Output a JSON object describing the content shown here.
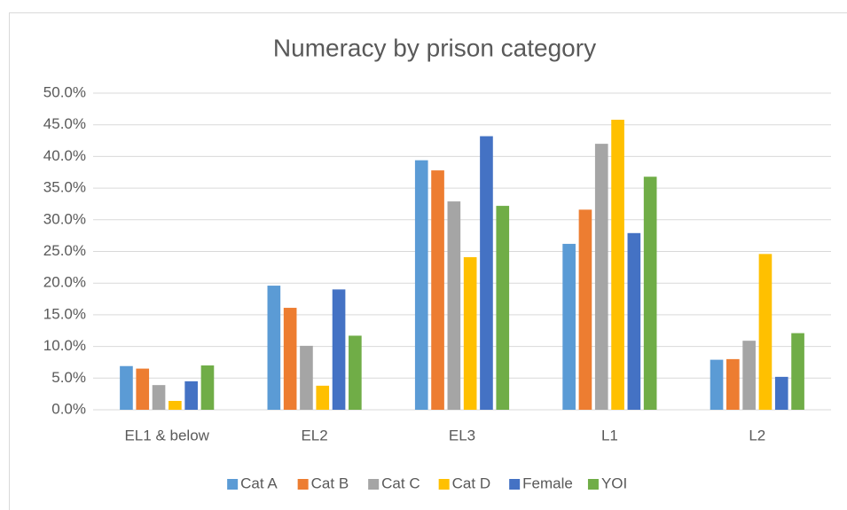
{
  "chart_data": {
    "type": "bar",
    "title": "Numeracy by prison category",
    "categories": [
      "EL1 & below",
      "EL2",
      "EL3",
      "L1",
      "L2"
    ],
    "series": [
      {
        "name": "Cat A",
        "color": "#5b9bd5",
        "values": [
          6.9,
          19.6,
          39.4,
          26.2,
          7.9
        ]
      },
      {
        "name": "Cat B",
        "color": "#ed7d31",
        "values": [
          6.5,
          16.1,
          37.8,
          31.6,
          8.0
        ]
      },
      {
        "name": "Cat C",
        "color": "#a5a5a5",
        "values": [
          3.9,
          10.1,
          32.9,
          42.0,
          10.9
        ]
      },
      {
        "name": "Cat D",
        "color": "#ffc000",
        "values": [
          1.4,
          3.8,
          24.1,
          45.8,
          24.6
        ]
      },
      {
        "name": "Female",
        "color": "#4472c4",
        "values": [
          4.5,
          19.0,
          43.2,
          27.9,
          5.2
        ]
      },
      {
        "name": "YOI",
        "color": "#70ad47",
        "values": [
          7.0,
          11.7,
          32.2,
          36.8,
          12.1
        ]
      }
    ],
    "ylim": [
      0,
      50
    ],
    "yticks": [
      {
        "value": 0,
        "label": "0.0%"
      },
      {
        "value": 5,
        "label": "5.0%"
      },
      {
        "value": 10,
        "label": "10.0%"
      },
      {
        "value": 15,
        "label": "15.0%"
      },
      {
        "value": 20,
        "label": "20.0%"
      },
      {
        "value": 25,
        "label": "25.0%"
      },
      {
        "value": 30,
        "label": "30.0%"
      },
      {
        "value": 35,
        "label": "35.0%"
      },
      {
        "value": 40,
        "label": "40.0%"
      },
      {
        "value": 45,
        "label": "45.0%"
      },
      {
        "value": 50,
        "label": "50.0%"
      }
    ],
    "grid": true,
    "legend": "bottom"
  }
}
